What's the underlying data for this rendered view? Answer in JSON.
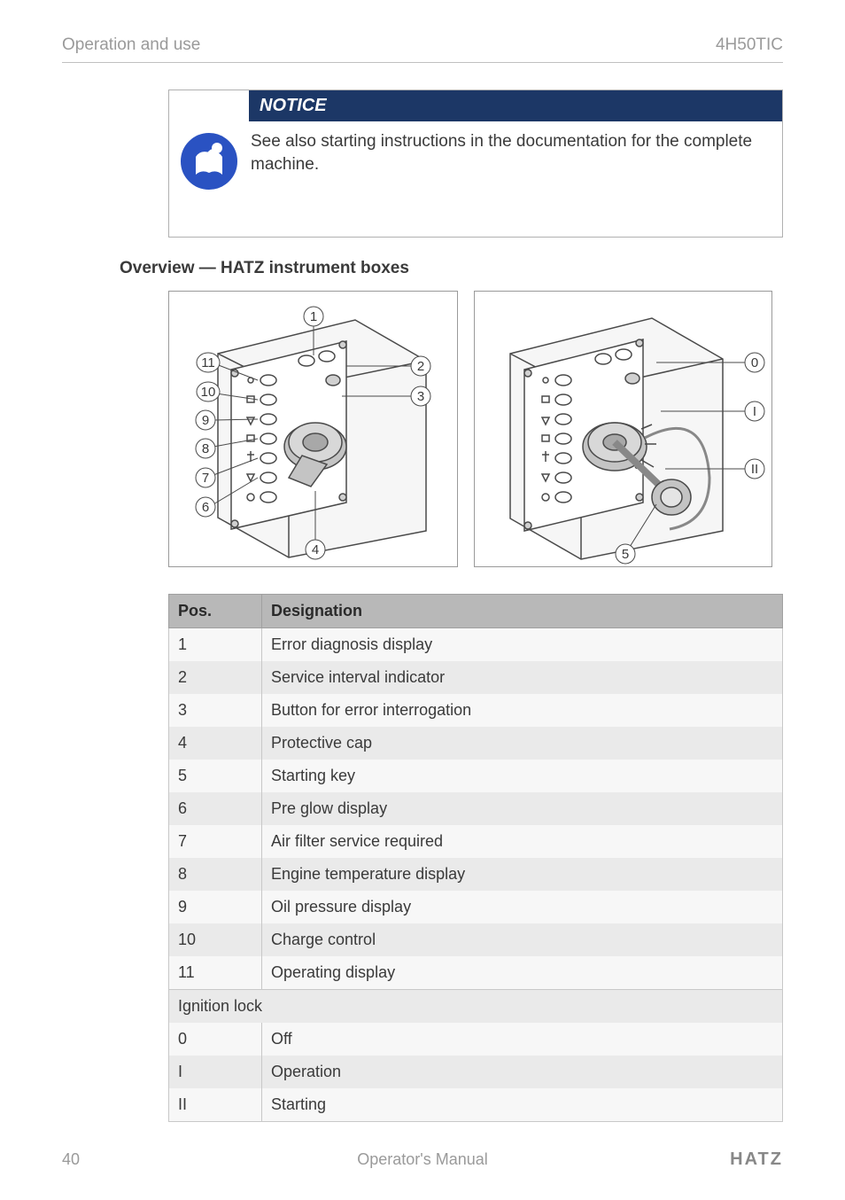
{
  "header": {
    "left": "Operation and use",
    "right": "4H50TIC"
  },
  "notice": {
    "label": "NOTICE",
    "text": "See also starting instructions in the documentation for the complete machine.",
    "bar_bg": "#1c3766",
    "bar_color": "#ffffff",
    "icon_bg": "#2a52c2",
    "icon_fg": "#ffffff"
  },
  "section_title": "Overview — HATZ instrument boxes",
  "figure": {
    "left_callouts": [
      "1",
      "2",
      "3",
      "4",
      "6",
      "7",
      "8",
      "9",
      "10",
      "11"
    ],
    "right_callouts": [
      "0",
      "I",
      "II",
      "5"
    ],
    "stroke": "#4a4a4a",
    "fill_light": "#f4f4f4",
    "fill_gray": "#c4c4c4",
    "border": "#9a9a9a"
  },
  "table": {
    "headers": {
      "pos": "Pos.",
      "designation": "Designation"
    },
    "rows": [
      {
        "pos": "1",
        "designation": "Error diagnosis display"
      },
      {
        "pos": "2",
        "designation": "Service interval indicator"
      },
      {
        "pos": "3",
        "designation": "Button for error interrogation"
      },
      {
        "pos": "4",
        "designation": "Protective cap"
      },
      {
        "pos": "5",
        "designation": "Starting key"
      },
      {
        "pos": "6",
        "designation": "Pre glow display"
      },
      {
        "pos": "7",
        "designation": "Air filter service required"
      },
      {
        "pos": "8",
        "designation": "Engine temperature display"
      },
      {
        "pos": "9",
        "designation": "Oil pressure display"
      },
      {
        "pos": "10",
        "designation": "Charge control"
      },
      {
        "pos": "11",
        "designation": "Operating display"
      }
    ],
    "section_label": "Ignition lock",
    "ignition_rows": [
      {
        "pos": "0",
        "designation": "Off"
      },
      {
        "pos": "I",
        "designation": "Operation"
      },
      {
        "pos": "II",
        "designation": "Starting"
      }
    ],
    "header_bg": "#b8b8b8",
    "row_odd_bg": "#eaeaea",
    "row_even_bg": "#f7f7f7",
    "border_color": "#c8c8c8"
  },
  "footer": {
    "page": "40",
    "center": "Operator's Manual",
    "brand": "HATZ"
  }
}
